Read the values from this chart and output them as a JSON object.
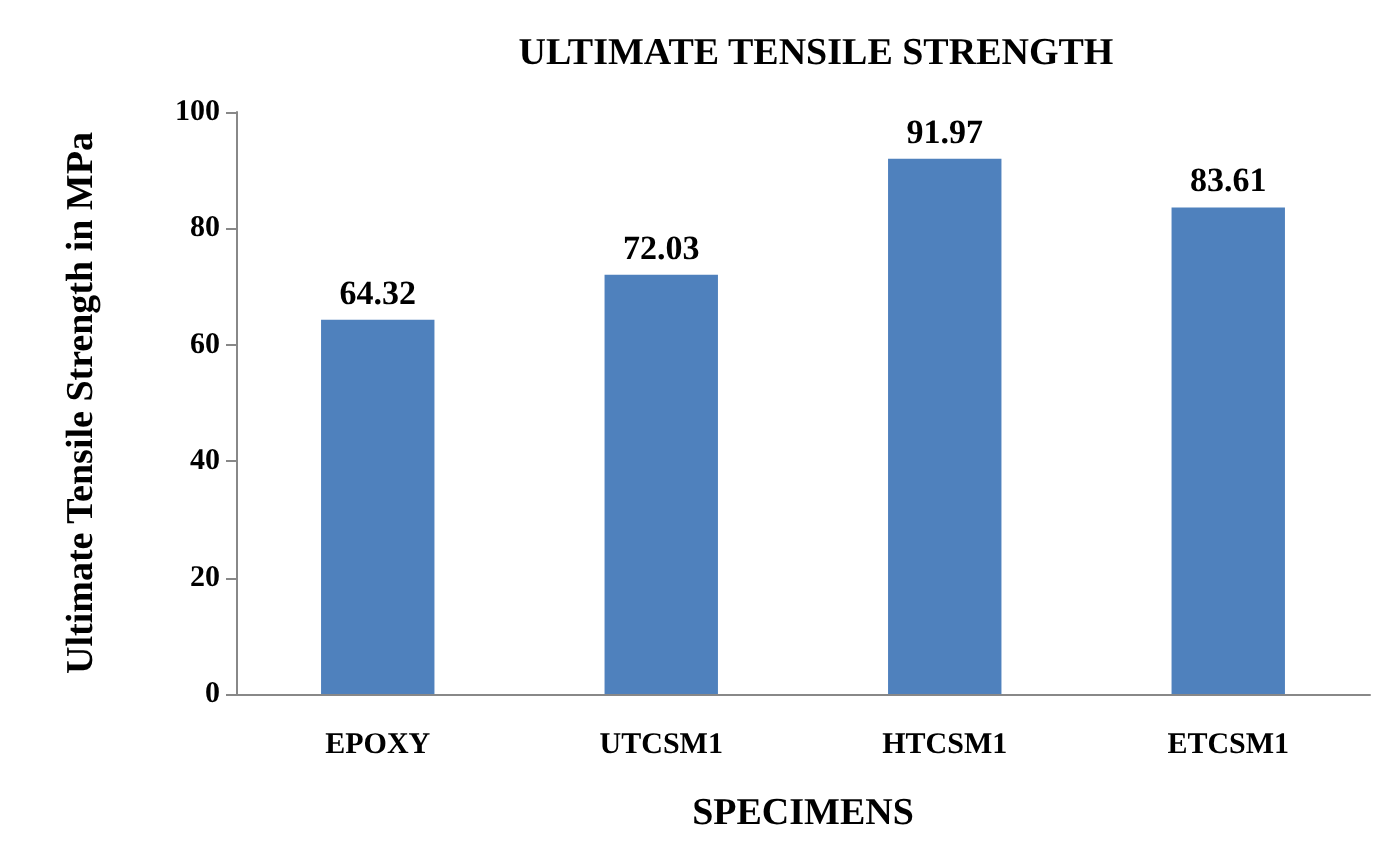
{
  "chart_data": {
    "type": "bar",
    "title": "ULTIMATE TENSILE STRENGTH",
    "xlabel": "SPECIMENS",
    "ylabel": "Ultimate Tensile Strength in MPa",
    "categories": [
      "EPOXY",
      "UTCSM1",
      "HTCSM1",
      "ETCSM1"
    ],
    "values": [
      64.32,
      72.03,
      91.97,
      83.61
    ],
    "color": "#4f81bd",
    "ylim": [
      0,
      100
    ],
    "yticks": [
      0,
      20,
      40,
      60,
      80,
      100
    ],
    "grid": false,
    "data_labels": true
  }
}
